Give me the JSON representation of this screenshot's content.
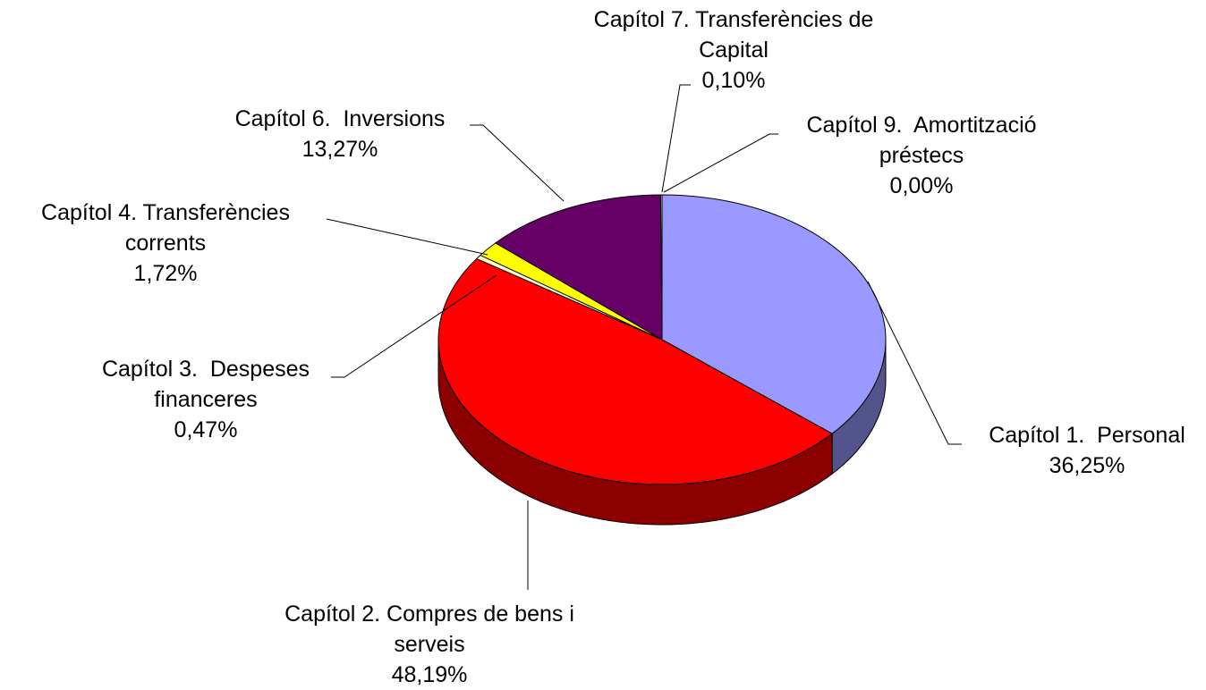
{
  "chart_data": {
    "type": "pie",
    "categories": [
      "Capítol 1.  Personal",
      "Capítol 2. Compres de bens i serveis",
      "Capítol 3.  Despeses financeres",
      "Capítol 4. Transferències corrents",
      "Capítol 6.  Inversions",
      "Capítol 7. Transferències de Capital",
      "Capítol 9.  Amortització préstecs"
    ],
    "values": [
      36.25,
      48.19,
      0.47,
      1.72,
      13.27,
      0.1,
      0.0
    ],
    "value_labels": [
      "36,25%",
      "48,19%",
      "0,47%",
      "1,72%",
      "13,27%",
      "0,10%",
      "0,00%"
    ],
    "colors": [
      "#9999ff",
      "#ff0000",
      "#ffffcc",
      "#ffff00",
      "#660066",
      "#ccffff",
      "#993366"
    ]
  }
}
